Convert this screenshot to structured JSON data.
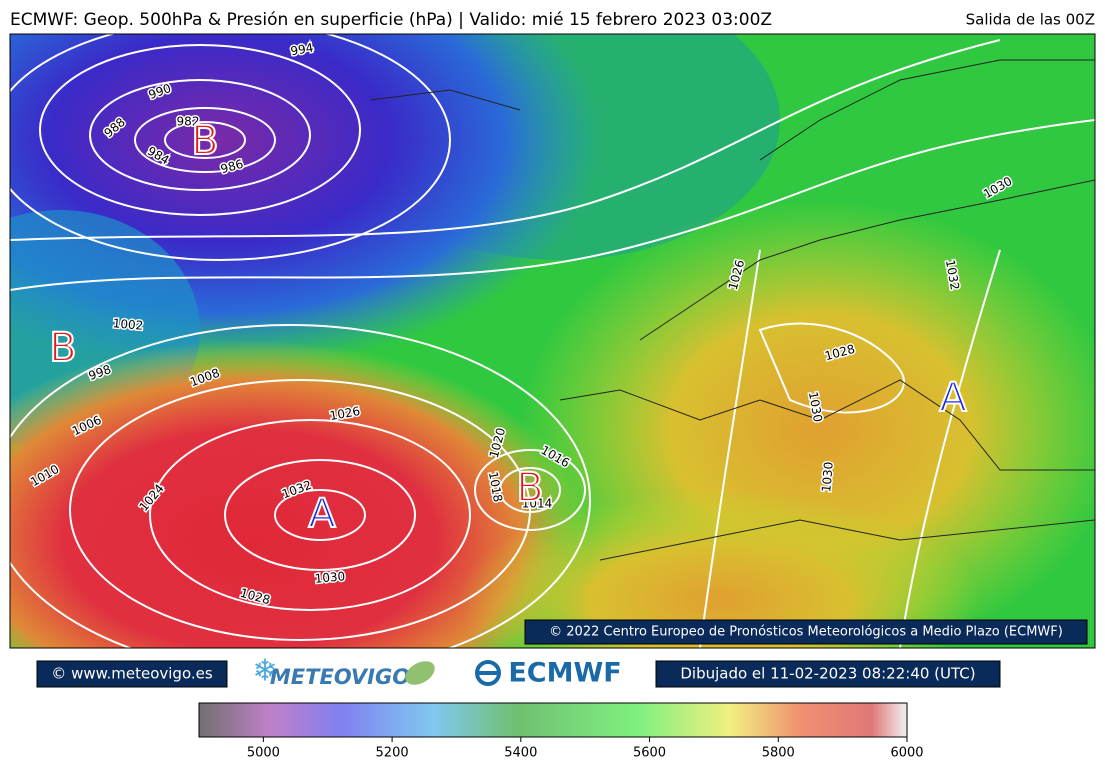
{
  "header": {
    "title": "ECMWF: Geop. 500hPa & Presión en superficie (hPa) | Valido: mié 15 febrero 2023 03:00Z",
    "run": "Salida de las 00Z"
  },
  "map": {
    "centers": [
      "B",
      "B",
      "A",
      "B",
      "A"
    ],
    "isobar_labels": [
      994,
      990,
      988,
      982,
      984,
      986,
      1002,
      998,
      1008,
      1006,
      1010,
      1024,
      1026,
      1032,
      1030,
      1028,
      1020,
      1018,
      1016,
      1014,
      1026,
      1028,
      1030,
      1030,
      1032,
      1030
    ]
  },
  "footer": {
    "copyright": "© 2022 Centro Europeo de Pronósticos Meteorológicos a Medio Plazo (ECMWF)",
    "site": "© www.meteovigo.es",
    "meteovigo_logo": "METEOVIGO",
    "ecmwf_logo": "ECMWF",
    "drawn": "Dibujado el 11-02-2023 08:22:40 (UTC)"
  },
  "colorbar": {
    "lim": [
      4900,
      6000
    ],
    "ticks": [
      5000,
      5200,
      5400,
      5600,
      5800,
      6000
    ]
  }
}
